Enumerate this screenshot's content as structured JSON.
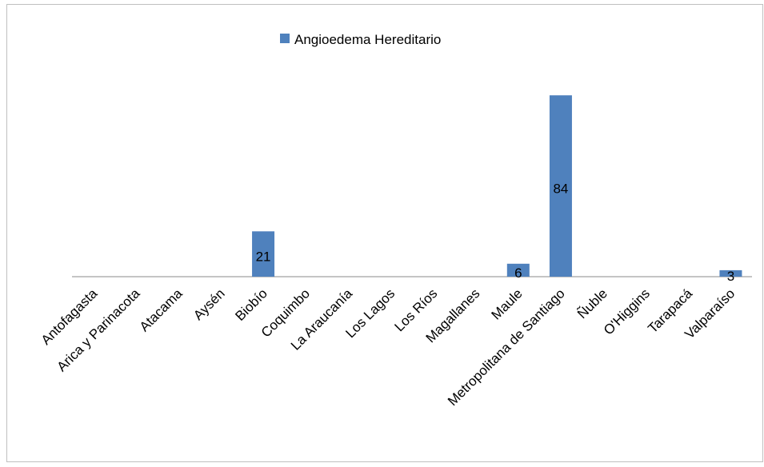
{
  "chart_data": {
    "type": "bar",
    "categories": [
      "Antofagasta",
      "Arica y Parinacota",
      "Atacama",
      "Aysén",
      "Biobío",
      "Coquimbo",
      "La Araucanía",
      "Los Lagos",
      "Los Ríos",
      "Magallanes",
      "Maule",
      "Metropolitana de Santiago",
      "Ñuble",
      "O'Higgins",
      "Tarapacá",
      "Valparaíso"
    ],
    "series": [
      {
        "name": "Angioedema Hereditario",
        "color": "#4f81bd",
        "values": [
          null,
          null,
          null,
          null,
          21,
          null,
          null,
          null,
          null,
          null,
          6,
          84,
          null,
          null,
          null,
          3
        ]
      }
    ],
    "ylim": [
      0,
      90
    ],
    "legend": "top"
  }
}
